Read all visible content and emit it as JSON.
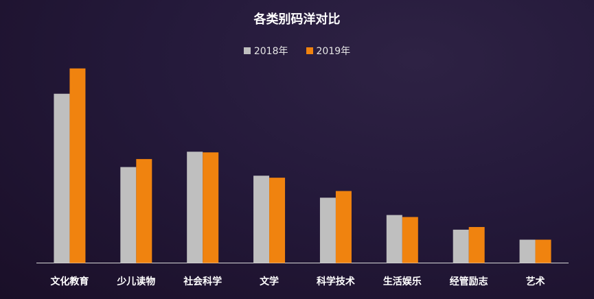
{
  "chart_data": {
    "type": "bar",
    "title": "各类别码洋对比",
    "categories": [
      "文化教育",
      "少儿读物",
      "社会科学",
      "文学",
      "科学技术",
      "生活娱乐",
      "经管励志",
      "艺术"
    ],
    "series": [
      {
        "name": "2018年",
        "color": "#bfbfbf",
        "values": [
          254,
          144,
          167,
          131,
          98,
          72,
          50,
          35
        ]
      },
      {
        "name": "2019年",
        "color": "#f0830f",
        "values": [
          292,
          156,
          166,
          128,
          108,
          69,
          54,
          35
        ]
      }
    ],
    "ylim": [
      0,
      300
    ],
    "grid": false,
    "legend_position": "top-center",
    "xlabel": "",
    "ylabel": ""
  }
}
